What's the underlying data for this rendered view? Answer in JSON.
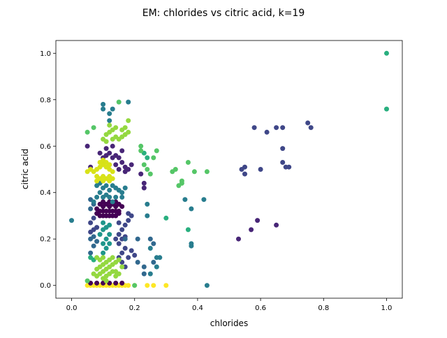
{
  "chart_data": {
    "type": "scatter",
    "title": "EM: chlorides vs citric acid, k=19",
    "xlabel": "chlorides",
    "ylabel": "citric acid",
    "xlim": [
      -0.05,
      1.05
    ],
    "ylim": [
      -0.055,
      1.055
    ],
    "xticks": [
      0.0,
      0.2,
      0.4,
      0.6,
      0.8,
      1.0
    ],
    "xtick_labels": [
      "0.0",
      "0.2",
      "0.4",
      "0.6",
      "0.8",
      "1.0"
    ],
    "yticks": [
      0.0,
      0.2,
      0.4,
      0.6,
      0.8,
      1.0
    ],
    "ytick_labels": [
      "0.0",
      "0.2",
      "0.4",
      "0.6",
      "0.8",
      "1.0"
    ],
    "grid": false,
    "legend": false,
    "palette": {
      "c0": "#440154",
      "c1": "#482677",
      "c2": "#3f4788",
      "c3": "#31688e",
      "c4": "#287d8e",
      "c5": "#1f968b",
      "c6": "#29af7f",
      "c7": "#55c667",
      "c8": "#94d840",
      "c9": "#d8e219",
      "c10": "#fde725"
    },
    "series": [
      {
        "color": "#fde725",
        "points": [
          [
            0.05,
            0.0
          ],
          [
            0.06,
            0.0
          ],
          [
            0.07,
            0.0
          ],
          [
            0.08,
            0.0
          ],
          [
            0.09,
            0.0
          ],
          [
            0.1,
            0.0
          ],
          [
            0.11,
            0.0
          ],
          [
            0.12,
            0.0
          ],
          [
            0.13,
            0.0
          ],
          [
            0.14,
            0.0
          ],
          [
            0.15,
            0.0
          ],
          [
            0.16,
            0.0
          ],
          [
            0.17,
            0.0
          ],
          [
            0.18,
            0.0
          ],
          [
            0.2,
            0.0
          ],
          [
            0.24,
            0.0
          ],
          [
            0.26,
            0.0
          ],
          [
            0.3,
            0.0
          ]
        ]
      },
      {
        "color": "#440154",
        "points": [
          [
            0.06,
            0.01
          ],
          [
            0.08,
            0.01
          ],
          [
            0.1,
            0.01
          ],
          [
            0.12,
            0.01
          ],
          [
            0.14,
            0.01
          ],
          [
            0.16,
            0.01
          ],
          [
            0.09,
            0.3
          ],
          [
            0.1,
            0.3
          ],
          [
            0.11,
            0.3
          ],
          [
            0.12,
            0.3
          ],
          [
            0.13,
            0.3
          ],
          [
            0.14,
            0.3
          ],
          [
            0.08,
            0.31
          ],
          [
            0.15,
            0.31
          ],
          [
            0.09,
            0.32
          ],
          [
            0.1,
            0.32
          ],
          [
            0.11,
            0.32
          ],
          [
            0.12,
            0.32
          ],
          [
            0.13,
            0.32
          ],
          [
            0.14,
            0.32
          ],
          [
            0.15,
            0.32
          ],
          [
            0.08,
            0.33
          ],
          [
            0.1,
            0.34
          ],
          [
            0.12,
            0.34
          ],
          [
            0.14,
            0.34
          ],
          [
            0.16,
            0.34
          ],
          [
            0.09,
            0.35
          ],
          [
            0.11,
            0.35
          ],
          [
            0.13,
            0.35
          ],
          [
            0.15,
            0.35
          ],
          [
            0.1,
            0.36
          ],
          [
            0.12,
            0.36
          ],
          [
            0.14,
            0.36
          ]
        ]
      },
      {
        "color": "#482677",
        "points": [
          [
            0.05,
            0.6
          ],
          [
            0.09,
            0.57
          ],
          [
            0.1,
            0.55
          ],
          [
            0.11,
            0.56
          ],
          [
            0.12,
            0.57
          ],
          [
            0.13,
            0.55
          ],
          [
            0.14,
            0.56
          ],
          [
            0.15,
            0.55
          ],
          [
            0.1,
            0.53
          ],
          [
            0.12,
            0.52
          ],
          [
            0.14,
            0.52
          ],
          [
            0.16,
            0.53
          ],
          [
            0.17,
            0.51
          ],
          [
            0.18,
            0.5
          ],
          [
            0.19,
            0.52
          ],
          [
            0.15,
            0.5
          ],
          [
            0.17,
            0.49
          ],
          [
            0.11,
            0.59
          ],
          [
            0.13,
            0.6
          ],
          [
            0.16,
            0.58
          ],
          [
            0.23,
            0.42
          ],
          [
            0.23,
            0.44
          ],
          [
            0.22,
            0.48
          ],
          [
            0.57,
            0.24
          ],
          [
            0.59,
            0.28
          ],
          [
            0.65,
            0.26
          ],
          [
            0.53,
            0.2
          ],
          [
            0.06,
            0.51
          ]
        ]
      },
      {
        "color": "#3f4788",
        "points": [
          [
            0.06,
            0.23
          ],
          [
            0.07,
            0.24
          ],
          [
            0.08,
            0.25
          ],
          [
            0.06,
            0.27
          ],
          [
            0.07,
            0.29
          ],
          [
            0.15,
            0.22
          ],
          [
            0.16,
            0.24
          ],
          [
            0.17,
            0.26
          ],
          [
            0.18,
            0.28
          ],
          [
            0.15,
            0.27
          ],
          [
            0.17,
            0.21
          ],
          [
            0.18,
            0.31
          ],
          [
            0.19,
            0.3
          ],
          [
            0.16,
            0.2
          ],
          [
            0.15,
            0.18
          ],
          [
            0.17,
            0.16
          ],
          [
            0.16,
            0.14
          ],
          [
            0.18,
            0.12
          ],
          [
            0.15,
            0.12
          ],
          [
            0.16,
            0.1
          ],
          [
            0.17,
            0.08
          ],
          [
            0.19,
            0.15
          ],
          [
            0.2,
            0.13
          ],
          [
            0.14,
            0.2
          ],
          [
            0.58,
            0.68
          ],
          [
            0.62,
            0.66
          ],
          [
            0.65,
            0.68
          ],
          [
            0.67,
            0.68
          ],
          [
            0.75,
            0.7
          ],
          [
            0.76,
            0.68
          ],
          [
            0.67,
            0.59
          ],
          [
            0.67,
            0.53
          ],
          [
            0.68,
            0.51
          ],
          [
            0.69,
            0.51
          ],
          [
            0.55,
            0.51
          ],
          [
            0.54,
            0.5
          ],
          [
            0.55,
            0.48
          ],
          [
            0.6,
            0.5
          ]
        ]
      },
      {
        "color": "#31688e",
        "points": [
          [
            0.06,
            0.14
          ],
          [
            0.07,
            0.17
          ],
          [
            0.08,
            0.19
          ],
          [
            0.06,
            0.2
          ],
          [
            0.07,
            0.21
          ],
          [
            0.06,
            0.33
          ],
          [
            0.07,
            0.35
          ],
          [
            0.06,
            0.37
          ],
          [
            0.17,
            0.2
          ],
          [
            0.21,
            0.2
          ],
          [
            0.25,
            0.2
          ],
          [
            0.21,
            0.1
          ],
          [
            0.23,
            0.08
          ],
          [
            0.23,
            0.05
          ],
          [
            0.26,
            0.1
          ],
          [
            0.26,
            0.18
          ]
        ]
      },
      {
        "color": "#287d8e",
        "points": [
          [
            0.0,
            0.28
          ],
          [
            0.07,
            0.36
          ],
          [
            0.08,
            0.38
          ],
          [
            0.09,
            0.4
          ],
          [
            0.1,
            0.42
          ],
          [
            0.11,
            0.43
          ],
          [
            0.12,
            0.41
          ],
          [
            0.13,
            0.43
          ],
          [
            0.14,
            0.42
          ],
          [
            0.15,
            0.41
          ],
          [
            0.16,
            0.4
          ],
          [
            0.17,
            0.42
          ],
          [
            0.08,
            0.43
          ],
          [
            0.09,
            0.44
          ],
          [
            0.1,
            0.38
          ],
          [
            0.12,
            0.38
          ],
          [
            0.14,
            0.38
          ],
          [
            0.16,
            0.38
          ],
          [
            0.13,
            0.36
          ],
          [
            0.11,
            0.39
          ],
          [
            0.1,
            0.76
          ],
          [
            0.1,
            0.78
          ],
          [
            0.12,
            0.74
          ],
          [
            0.18,
            0.79
          ],
          [
            0.12,
            0.71
          ],
          [
            0.13,
            0.76
          ],
          [
            0.24,
            0.3
          ],
          [
            0.24,
            0.35
          ],
          [
            0.25,
            0.16
          ],
          [
            0.27,
            0.12
          ],
          [
            0.28,
            0.12
          ],
          [
            0.27,
            0.08
          ],
          [
            0.25,
            0.05
          ],
          [
            0.42,
            0.37
          ],
          [
            0.43,
            0.0
          ],
          [
            0.36,
            0.37
          ],
          [
            0.38,
            0.33
          ],
          [
            0.38,
            0.17
          ],
          [
            0.38,
            0.18
          ]
        ]
      },
      {
        "color": "#1f968b",
        "points": [
          [
            0.09,
            0.22
          ],
          [
            0.1,
            0.24
          ],
          [
            0.11,
            0.2
          ],
          [
            0.1,
            0.18
          ],
          [
            0.11,
            0.16
          ],
          [
            0.12,
            0.22
          ],
          [
            0.1,
            0.27
          ],
          [
            0.11,
            0.25
          ],
          [
            0.12,
            0.18
          ],
          [
            0.1,
            0.14
          ],
          [
            0.12,
            0.26
          ]
        ]
      },
      {
        "color": "#29af7f",
        "points": [
          [
            0.06,
            0.12
          ],
          [
            0.07,
            0.11
          ],
          [
            1.0,
            1.0
          ],
          [
            1.0,
            0.76
          ],
          [
            0.24,
            0.55
          ],
          [
            0.23,
            0.57
          ],
          [
            0.37,
            0.24
          ],
          [
            0.3,
            0.29
          ]
        ]
      },
      {
        "color": "#55c667",
        "points": [
          [
            0.22,
            0.6
          ],
          [
            0.22,
            0.58
          ],
          [
            0.27,
            0.58
          ],
          [
            0.26,
            0.55
          ],
          [
            0.23,
            0.52
          ],
          [
            0.24,
            0.5
          ],
          [
            0.25,
            0.48
          ],
          [
            0.32,
            0.49
          ],
          [
            0.33,
            0.5
          ],
          [
            0.37,
            0.53
          ],
          [
            0.39,
            0.49
          ],
          [
            0.43,
            0.49
          ],
          [
            0.35,
            0.44
          ],
          [
            0.35,
            0.45
          ],
          [
            0.34,
            0.43
          ],
          [
            0.05,
            0.66
          ],
          [
            0.07,
            0.68
          ],
          [
            0.15,
            0.79
          ],
          [
            0.05,
            0.02
          ],
          [
            0.2,
            0.0
          ]
        ]
      },
      {
        "color": "#94d840",
        "points": [
          [
            0.08,
            0.04
          ],
          [
            0.09,
            0.05
          ],
          [
            0.1,
            0.06
          ],
          [
            0.11,
            0.07
          ],
          [
            0.12,
            0.08
          ],
          [
            0.13,
            0.09
          ],
          [
            0.14,
            0.1
          ],
          [
            0.07,
            0.05
          ],
          [
            0.08,
            0.07
          ],
          [
            0.09,
            0.08
          ],
          [
            0.1,
            0.09
          ],
          [
            0.11,
            0.1
          ],
          [
            0.12,
            0.11
          ],
          [
            0.13,
            0.12
          ],
          [
            0.14,
            0.06
          ],
          [
            0.15,
            0.05
          ],
          [
            0.1,
            0.03
          ],
          [
            0.11,
            0.04
          ],
          [
            0.12,
            0.05
          ],
          [
            0.13,
            0.06
          ],
          [
            0.09,
            0.11
          ],
          [
            0.1,
            0.12
          ],
          [
            0.11,
            0.02
          ],
          [
            0.14,
            0.04
          ],
          [
            0.16,
            0.08
          ],
          [
            0.15,
            0.11
          ],
          [
            0.08,
            0.12
          ],
          [
            0.1,
            0.63
          ],
          [
            0.11,
            0.65
          ],
          [
            0.12,
            0.66
          ],
          [
            0.13,
            0.67
          ],
          [
            0.14,
            0.68
          ],
          [
            0.12,
            0.69
          ],
          [
            0.11,
            0.62
          ],
          [
            0.13,
            0.63
          ],
          [
            0.15,
            0.63
          ],
          [
            0.16,
            0.64
          ],
          [
            0.17,
            0.65
          ],
          [
            0.18,
            0.66
          ],
          [
            0.17,
            0.68
          ],
          [
            0.18,
            0.71
          ],
          [
            0.16,
            0.67
          ],
          [
            0.14,
            0.64
          ]
        ]
      },
      {
        "color": "#d8e219",
        "points": [
          [
            0.05,
            0.49
          ],
          [
            0.06,
            0.5
          ],
          [
            0.07,
            0.49
          ],
          [
            0.08,
            0.5
          ],
          [
            0.09,
            0.51
          ],
          [
            0.1,
            0.52
          ],
          [
            0.11,
            0.51
          ],
          [
            0.12,
            0.5
          ],
          [
            0.13,
            0.49
          ],
          [
            0.08,
            0.47
          ],
          [
            0.09,
            0.46
          ],
          [
            0.1,
            0.47
          ],
          [
            0.11,
            0.46
          ],
          [
            0.12,
            0.47
          ],
          [
            0.13,
            0.46
          ],
          [
            0.09,
            0.53
          ],
          [
            0.1,
            0.54
          ],
          [
            0.11,
            0.53
          ],
          [
            0.12,
            0.52
          ],
          [
            0.08,
            0.45
          ],
          [
            0.1,
            0.45
          ],
          [
            0.12,
            0.45
          ]
        ]
      }
    ]
  }
}
